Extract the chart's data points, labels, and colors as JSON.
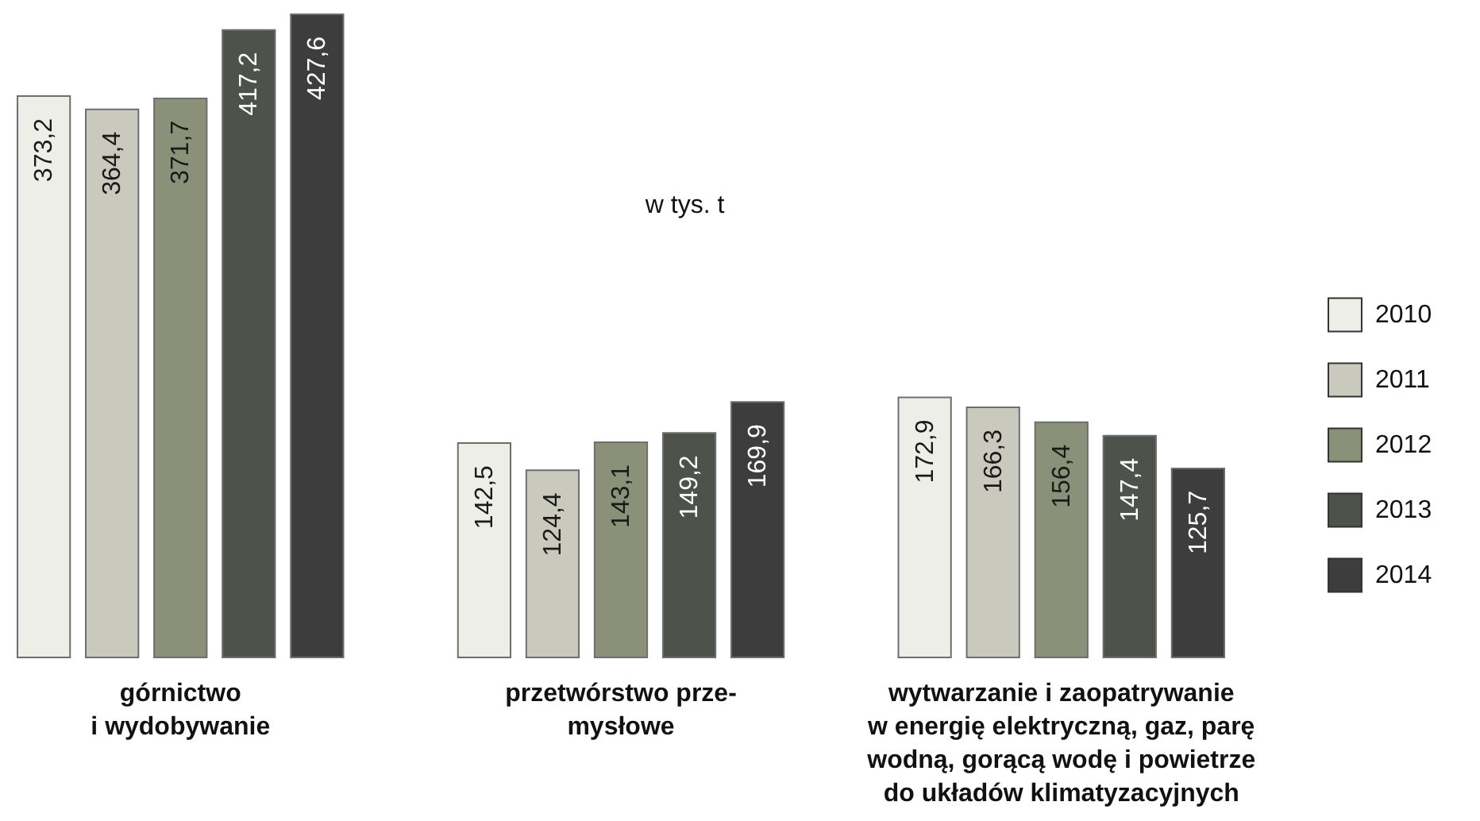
{
  "chart_data": {
    "type": "bar",
    "categories": [
      "górnictwo\ni wydobywanie",
      "przetwórstwo prze-\nmysłowe",
      "wytwarzanie i zaopatrywanie\nw energię elektryczną, gaz, parę\nwodną, gorącą wodę i powietrze\ndo układów klimatyzacyjnych"
    ],
    "series": [
      {
        "name": "2010",
        "color": "#eeeee8",
        "values": [
          373.2,
          142.5,
          172.9
        ],
        "value_labels": [
          "373,2",
          "142,5",
          "172,9"
        ]
      },
      {
        "name": "2011",
        "color": "#c9cabd",
        "values": [
          364.4,
          124.4,
          166.3
        ],
        "value_labels": [
          "364,4",
          "124,4",
          "166,3"
        ]
      },
      {
        "name": "2012",
        "color": "#8b9078",
        "values": [
          371.7,
          143.1,
          156.4
        ],
        "value_labels": [
          "371,7",
          "143,1",
          "156,4"
        ]
      },
      {
        "name": "2013",
        "color": "#4d524a",
        "values": [
          417.2,
          149.2,
          147.4
        ],
        "value_labels": [
          "417,2",
          "149,2",
          "147,4"
        ]
      },
      {
        "name": "2014",
        "color": "#3c3d3c",
        "values": [
          427.6,
          169.9,
          125.7
        ],
        "value_labels": [
          "427,6",
          "169,9",
          "125,7"
        ]
      }
    ],
    "annotations": [
      "w tys. t"
    ],
    "legend": "right"
  }
}
